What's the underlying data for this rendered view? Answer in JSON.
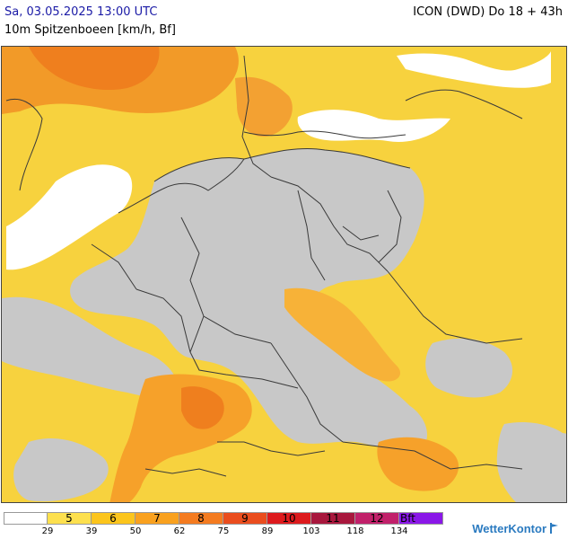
{
  "header": {
    "datetime": "Sa, 03.05.2025 13:00 UTC",
    "model": "ICON (DWD) Do 18 + 43h",
    "parameter": "10m Spitzenboeen [km/h, Bf]"
  },
  "legend": {
    "cells": [
      {
        "label": "",
        "color": "#ffffff"
      },
      {
        "label": "5",
        "color": "#fde04e"
      },
      {
        "label": "6",
        "color": "#fcc51c"
      },
      {
        "label": "7",
        "color": "#f9a11f"
      },
      {
        "label": "8",
        "color": "#f47b20"
      },
      {
        "label": "9",
        "color": "#ea4d1e"
      },
      {
        "label": "10",
        "color": "#dd1a1d"
      },
      {
        "label": "11",
        "color": "#a8173d"
      },
      {
        "label": "12",
        "color": "#c1206a"
      },
      {
        "label": "Bft",
        "color": "#8a17e8"
      }
    ],
    "ticks": [
      "29",
      "39",
      "50",
      "62",
      "75",
      "89",
      "103",
      "118",
      "134"
    ]
  },
  "brand": "WetterKontor",
  "colors": {
    "below_threshold_land": "#c8c8c8",
    "sea_calm": "#ffffff",
    "borders": "#444444"
  }
}
